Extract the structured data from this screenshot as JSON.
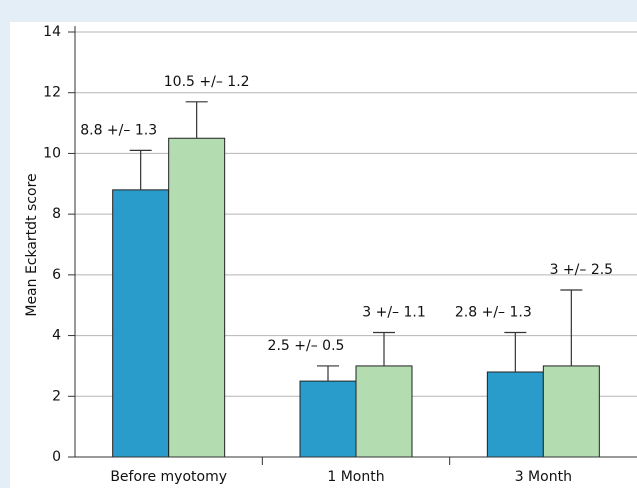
{
  "chart_data": {
    "type": "bar",
    "y_label": "Mean Eckartdt score",
    "categories": [
      "Before myotomy",
      "1 Month",
      "3 Month"
    ],
    "series": [
      {
        "color": "#2a9ccb",
        "values": [
          8.8,
          2.5,
          2.8
        ],
        "errors": [
          1.3,
          0.5,
          1.3
        ],
        "value_labels": [
          "8.8 +/– 1.3",
          "2.5 +/– 0.5",
          "2.8 +/– 1.3"
        ]
      },
      {
        "color": "#b3dcb1",
        "values": [
          10.5,
          3,
          3
        ],
        "errors": [
          1.2,
          1.1,
          2.5
        ],
        "value_labels": [
          "10.5 +/– 1.2",
          "3 +/– 1.1",
          "3 +/– 2.5"
        ]
      }
    ],
    "ylim": [
      0,
      14
    ],
    "yticks": [
      0,
      2,
      4,
      6,
      8,
      10,
      12,
      14
    ],
    "grid": true
  }
}
